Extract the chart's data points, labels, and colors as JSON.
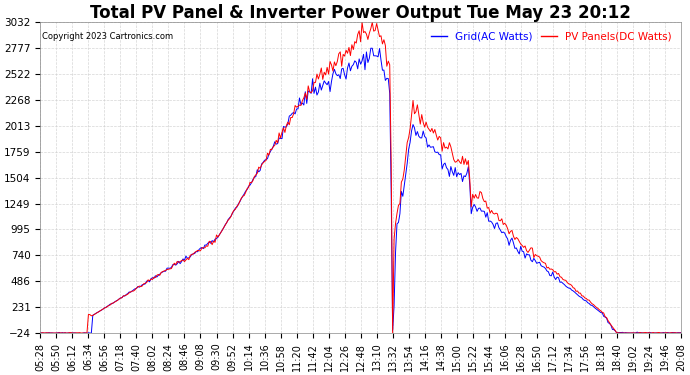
{
  "title": "Total PV Panel & Inverter Power Output Tue May 23 20:12",
  "copyright": "Copyright 2023 Cartronics.com",
  "legend_blue": "Grid(AC Watts)",
  "legend_red": "PV Panels(DC Watts)",
  "y_ticks": [
    3031.5,
    2776.9,
    2522.4,
    2267.8,
    2013.2,
    1758.6,
    1504.0,
    1249.4,
    994.8,
    740.3,
    485.7,
    231.1,
    -23.5
  ],
  "ymin": -23.5,
  "ymax": 3031.5,
  "background_color": "#ffffff",
  "grid_color": "#cccccc",
  "blue_color": "#0000ff",
  "red_color": "#ff0000",
  "title_fontsize": 12,
  "tick_fontsize": 7.5,
  "x_tick_labels": [
    "05:28",
    "05:50",
    "06:12",
    "06:34",
    "06:56",
    "07:18",
    "07:40",
    "08:02",
    "08:24",
    "08:46",
    "09:08",
    "09:30",
    "09:52",
    "10:14",
    "10:36",
    "10:58",
    "11:20",
    "11:42",
    "12:04",
    "12:26",
    "12:48",
    "13:10",
    "13:32",
    "13:54",
    "14:16",
    "14:38",
    "15:00",
    "15:22",
    "15:44",
    "16:06",
    "16:28",
    "16:50",
    "17:12",
    "17:34",
    "17:56",
    "18:18",
    "18:40",
    "19:02",
    "19:24",
    "19:46",
    "20:08"
  ]
}
